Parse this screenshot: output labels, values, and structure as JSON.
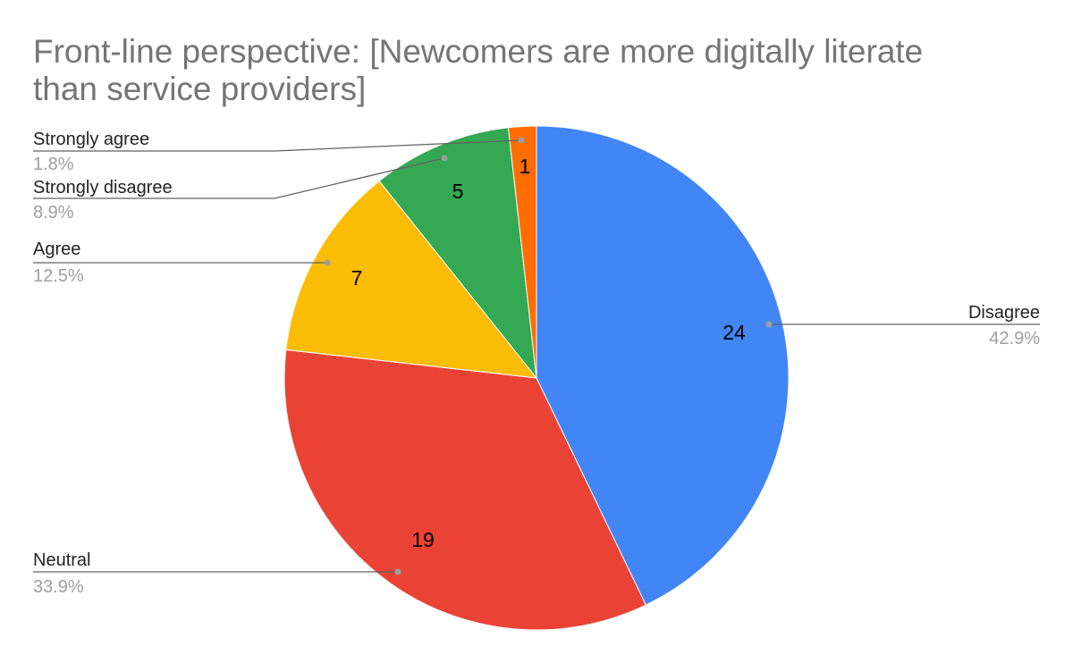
{
  "chart_data": {
    "type": "pie",
    "title": "Front-line perspective: [Newcomers are more digitally literate than service providers]",
    "title_lines": [
      "Front-line perspective: [Newcomers are more digitally literate",
      "than service providers]"
    ],
    "slices": [
      {
        "label": "Disagree",
        "value": 24,
        "percent_label": "42.9%",
        "color": "#4285f4"
      },
      {
        "label": "Neutral",
        "value": 19,
        "percent_label": "33.9%",
        "color": "#ea4335"
      },
      {
        "label": "Agree",
        "value": 7,
        "percent_label": "12.5%",
        "color": "#fbbc04"
      },
      {
        "label": "Strongly disagree",
        "value": 5,
        "percent_label": "8.9%",
        "color": "#34a853"
      },
      {
        "label": "Strongly agree",
        "value": 1,
        "percent_label": "1.8%",
        "color": "#ff6d01"
      }
    ],
    "legend": "labeled leader lines",
    "colors": {
      "title": "#757575",
      "label": "#222222",
      "percent": "#9e9e9e",
      "leader": "#616161"
    }
  }
}
